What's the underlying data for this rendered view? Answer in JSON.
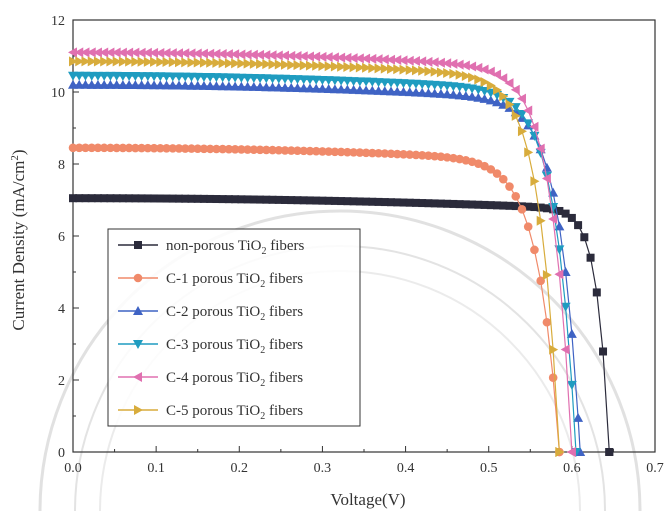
{
  "chart_data": {
    "type": "line",
    "xlabel": "Voltage(V)",
    "ylabel": "Current Density (mA/cm²)",
    "ylabel_main": "Current Density (mA/cm",
    "ylabel_sup": "2",
    "ylabel_end": ")",
    "xlim": [
      0.0,
      0.7
    ],
    "ylim": [
      0,
      12
    ],
    "xticks": [
      "0.0",
      "0.1",
      "0.2",
      "0.3",
      "0.4",
      "0.5",
      "0.6",
      "0.7"
    ],
    "yticks": [
      "0",
      "2",
      "4",
      "6",
      "8",
      "10",
      "12"
    ],
    "grid": false,
    "legend_position": "bottom-left",
    "series": [
      {
        "name": "non-porous TiO2 fibers",
        "legend_pre": "non-porous TiO",
        "legend_sub": "2",
        "legend_post": " fibers",
        "color": "#2b2b3b",
        "marker": "square",
        "jsc": 7.05,
        "voc": 0.645,
        "n": 4.6
      },
      {
        "name": "C-1 porous TiO2 fibers",
        "legend_pre": "C-1 porous TiO",
        "legend_sub": "2",
        "legend_post": " fibers",
        "color": "#f08a6a",
        "marker": "circle",
        "jsc": 8.45,
        "voc": 0.585,
        "n": 2.3
      },
      {
        "name": "C-2 porous TiO2 fibers",
        "legend_pre": "C-2 porous TiO",
        "legend_sub": "2",
        "legend_post": " fibers",
        "color": "#3f63c4",
        "marker": "triangle-up",
        "jsc": 10.2,
        "voc": 0.61,
        "n": 2.5
      },
      {
        "name": "C-3 porous TiO2 fibers",
        "legend_pre": "C-3 porous TiO",
        "legend_sub": "2",
        "legend_post": " fibers",
        "color": "#1f9cc0",
        "marker": "triangle-down",
        "jsc": 10.45,
        "voc": 0.605,
        "n": 2.5
      },
      {
        "name": "C-4 porous TiO2 fibers",
        "legend_pre": "C-4 porous TiO",
        "legend_sub": "2",
        "legend_post": " fibers",
        "color": "#e070b0",
        "marker": "triangle-left",
        "jsc": 11.1,
        "voc": 0.6,
        "n": 2.5
      },
      {
        "name": "C-5 porous TiO2 fibers",
        "legend_pre": "C-5 porous TiO",
        "legend_sub": "2",
        "legend_post": " fibers",
        "color": "#d8ac3c",
        "marker": "triangle-right",
        "jsc": 10.85,
        "voc": 0.585,
        "n": 2.5
      }
    ]
  }
}
